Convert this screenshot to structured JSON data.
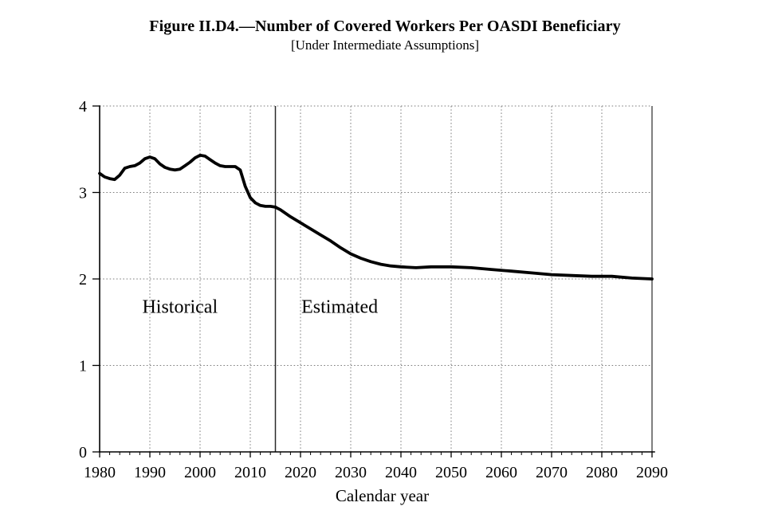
{
  "title": "Figure II.D4.—Number of Covered Workers Per OASDI Beneficiary",
  "subtitle": "[Under Intermediate Assumptions]",
  "chart_data": {
    "type": "line",
    "title": "Figure II.D4.—Number of Covered Workers Per OASDI Beneficiary",
    "subtitle": "[Under Intermediate Assumptions]",
    "xlabel": "Calendar year",
    "ylabel": "",
    "xlim": [
      1980,
      2090
    ],
    "ylim": [
      0,
      4
    ],
    "x_major_ticks": [
      1980,
      1990,
      2000,
      2010,
      2020,
      2030,
      2040,
      2050,
      2060,
      2070,
      2080,
      2090
    ],
    "x_minor_tick_step": 2,
    "y_ticks": [
      0,
      1,
      2,
      3,
      4
    ],
    "grid": {
      "style": "dotted",
      "horizontal_at": [
        1,
        2,
        3,
        4
      ],
      "vertical_at": [
        1990,
        2000,
        2010,
        2020,
        2030,
        2040,
        2050,
        2060,
        2070,
        2080
      ]
    },
    "divider": {
      "x": 2015,
      "style": "solid-vertical-line"
    },
    "line_color": "#000000",
    "background_color": "#ffffff",
    "legend_position": "none",
    "annotations": [
      {
        "text": "Historical",
        "x": 1996.0,
        "y": 1.68
      },
      {
        "text": "Estimated",
        "x": 2027.8,
        "y": 1.68
      }
    ],
    "series": [
      {
        "name": "Historical",
        "points": [
          [
            1980,
            3.22
          ],
          [
            1981,
            3.18
          ],
          [
            1982,
            3.16
          ],
          [
            1983,
            3.15
          ],
          [
            1984,
            3.2
          ],
          [
            1985,
            3.28
          ],
          [
            1986,
            3.3
          ],
          [
            1987,
            3.31
          ],
          [
            1988,
            3.34
          ],
          [
            1989,
            3.39
          ],
          [
            1990,
            3.41
          ],
          [
            1991,
            3.39
          ],
          [
            1992,
            3.33
          ],
          [
            1993,
            3.29
          ],
          [
            1994,
            3.27
          ],
          [
            1995,
            3.26
          ],
          [
            1996,
            3.27
          ],
          [
            1997,
            3.31
          ],
          [
            1998,
            3.35
          ],
          [
            1999,
            3.4
          ],
          [
            2000,
            3.43
          ],
          [
            2001,
            3.42
          ],
          [
            2002,
            3.38
          ],
          [
            2003,
            3.34
          ],
          [
            2004,
            3.31
          ],
          [
            2005,
            3.3
          ],
          [
            2006,
            3.3
          ],
          [
            2007,
            3.3
          ],
          [
            2008,
            3.26
          ],
          [
            2009,
            3.07
          ],
          [
            2010,
            2.94
          ],
          [
            2011,
            2.88
          ],
          [
            2012,
            2.85
          ],
          [
            2013,
            2.84
          ],
          [
            2014,
            2.84
          ],
          [
            2015,
            2.83
          ]
        ]
      },
      {
        "name": "Estimated",
        "points": [
          [
            2015,
            2.83
          ],
          [
            2016,
            2.8
          ],
          [
            2018,
            2.72
          ],
          [
            2020,
            2.65
          ],
          [
            2022,
            2.58
          ],
          [
            2024,
            2.51
          ],
          [
            2026,
            2.44
          ],
          [
            2028,
            2.36
          ],
          [
            2030,
            2.29
          ],
          [
            2032,
            2.24
          ],
          [
            2034,
            2.2
          ],
          [
            2036,
            2.17
          ],
          [
            2038,
            2.15
          ],
          [
            2040,
            2.14
          ],
          [
            2043,
            2.13
          ],
          [
            2046,
            2.14
          ],
          [
            2050,
            2.14
          ],
          [
            2054,
            2.13
          ],
          [
            2058,
            2.11
          ],
          [
            2062,
            2.09
          ],
          [
            2066,
            2.07
          ],
          [
            2070,
            2.05
          ],
          [
            2074,
            2.04
          ],
          [
            2078,
            2.03
          ],
          [
            2082,
            2.03
          ],
          [
            2086,
            2.01
          ],
          [
            2090,
            2.0
          ]
        ]
      }
    ]
  }
}
